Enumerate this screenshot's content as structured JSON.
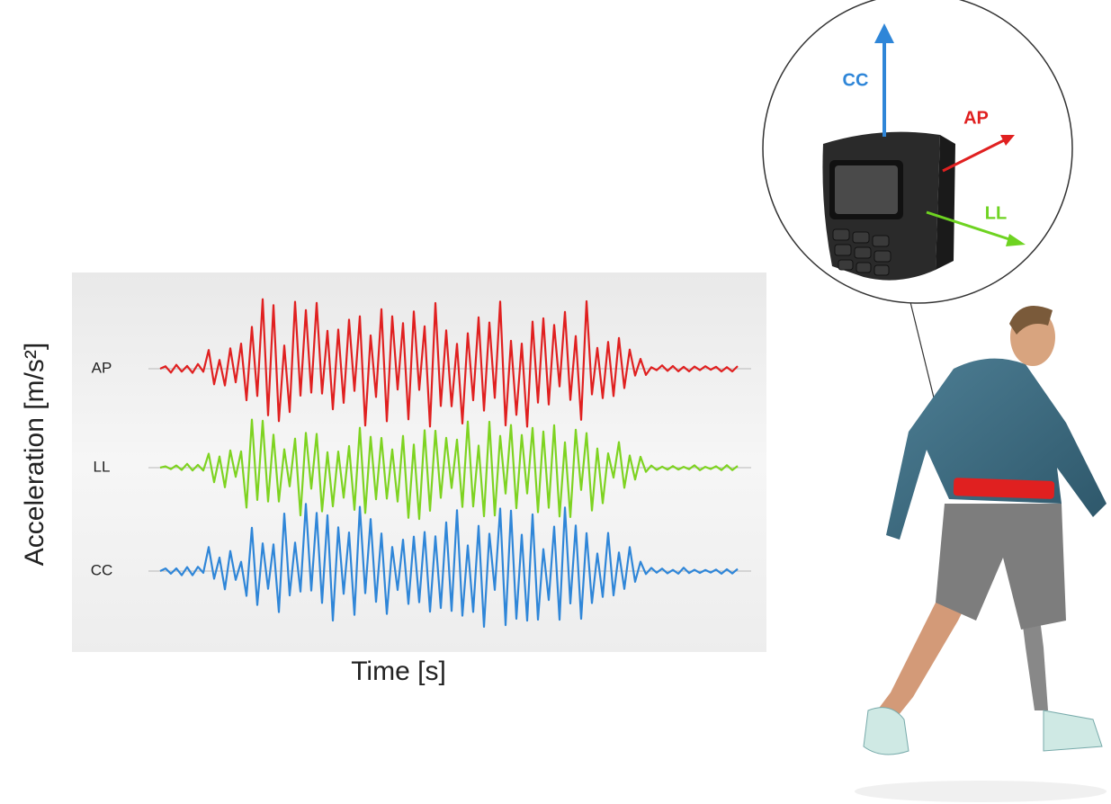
{
  "axis_labels": {
    "y": "Acceleration [m/s²]",
    "x": "Time [s]"
  },
  "signals": [
    {
      "label": "AP"
    },
    {
      "label": "LL"
    },
    {
      "label": "CC"
    }
  ],
  "inset": {
    "axes": [
      {
        "label": "CC"
      },
      {
        "label": "AP"
      },
      {
        "label": "LL"
      }
    ]
  }
}
